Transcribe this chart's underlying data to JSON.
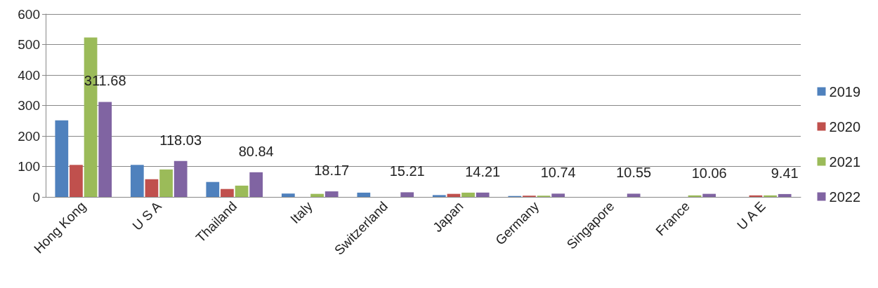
{
  "chart_data": {
    "type": "bar",
    "categories": [
      "Hong Kong",
      "U S A",
      "Thailand",
      "Italy",
      "Switzerland",
      "Japan",
      "Germany",
      "Singapore",
      "France",
      "U A E"
    ],
    "series": [
      {
        "name": "2019",
        "color": "#4f81bd",
        "values": [
          251,
          105,
          49,
          11,
          14,
          6,
          3,
          0,
          0,
          0
        ]
      },
      {
        "name": "2020",
        "color": "#c0504d",
        "values": [
          105,
          58,
          26,
          null,
          0,
          10,
          4,
          0,
          0,
          5
        ]
      },
      {
        "name": "2021",
        "color": "#9bbb59",
        "values": [
          523,
          90,
          37,
          10,
          null,
          14,
          4,
          0,
          5,
          5
        ]
      },
      {
        "name": "2022",
        "color": "#8064a2",
        "values": [
          311.68,
          118.03,
          80.84,
          18.17,
          15.21,
          14.21,
          10.74,
          10.55,
          10.06,
          9.41
        ],
        "value_labels": [
          "311.68",
          "118.03",
          "80.84",
          "18.17",
          "15.21",
          "14.21",
          "10.74",
          "10.55",
          "10.06",
          "9.41"
        ]
      }
    ],
    "ylim": [
      0,
      600
    ],
    "yticks": [
      0,
      100,
      200,
      300,
      400,
      500,
      600
    ],
    "grid": "y",
    "legend": "right"
  }
}
